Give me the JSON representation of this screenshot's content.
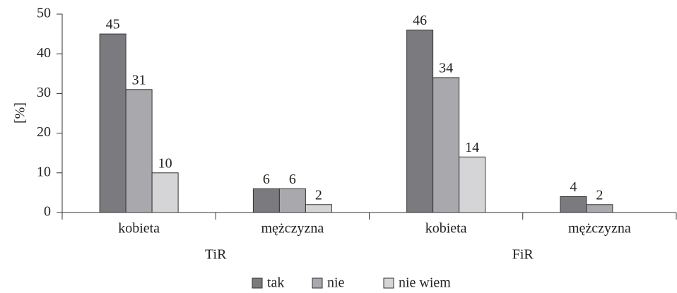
{
  "chart_data": {
    "type": "bar",
    "y_label": "[%]",
    "categories": [
      "kobieta",
      "mężczyzna",
      "kobieta",
      "mężczyzna"
    ],
    "groups": [
      "TiR",
      "FiR"
    ],
    "series": [
      {
        "name": "tak",
        "color": "#7b7b7f",
        "values": [
          45,
          6,
          46,
          4
        ]
      },
      {
        "name": "nie",
        "color": "#a9a9ad",
        "values": [
          31,
          6,
          34,
          2
        ]
      },
      {
        "name": "nie wiem",
        "color": "#d5d5d7",
        "values": [
          10,
          2,
          14,
          null
        ]
      }
    ],
    "ylim": [
      0,
      50
    ],
    "yticks": [
      0,
      10,
      20,
      30,
      40,
      50
    ],
    "grid": false,
    "legend": "bottom"
  }
}
